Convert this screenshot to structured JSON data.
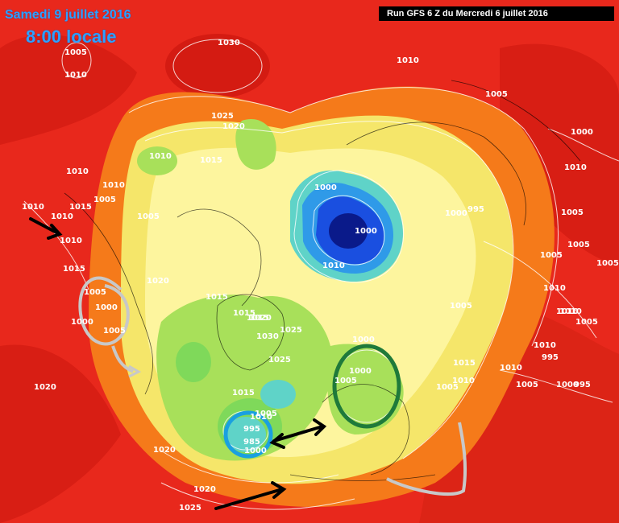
{
  "header": {
    "date": "Samedi 9 juillet 2016",
    "time": "8:00 locale",
    "run_info": "Run GFS 6 Z du Mercredi 6 juillet 2016"
  },
  "colors": {
    "background": "#e8281c",
    "orange": "#f57a1a",
    "yellow": "#f5e66a",
    "light_yellow": "#fdf59e",
    "green": "#a8e05a",
    "light_green": "#7fd95a",
    "cyan": "#5fd3c8",
    "blue": "#1a4fe0",
    "dark_blue": "#0a1a8a",
    "isobar": "#ffffff",
    "grey_annotation": "#c8c8c8",
    "green_annotation": "#1f7a3a",
    "blue_annotation": "#1aa0e0",
    "arrow": "#000000"
  },
  "isobar_labels": [
    "1005",
    "1010",
    "1030",
    "1010",
    "1025",
    "1020",
    "1005",
    "1010",
    "1015",
    "1010",
    "1000",
    "1010",
    "1010",
    "1005",
    "1015",
    "1000",
    "995",
    "1000",
    "1010",
    "1005",
    "1005",
    "1005",
    "1010",
    "1000",
    "1005",
    "1015",
    "1020",
    "1010",
    "1015",
    "1005",
    "1000",
    "1010",
    "1015",
    "1015",
    "1020",
    "1030",
    "1025",
    "1025",
    "1000",
    "1010",
    "1005",
    "1005",
    "1010",
    "1015",
    "1010",
    "1005",
    "1010",
    "995",
    "1020",
    "1015",
    "1005",
    "1000",
    "1010",
    "1005",
    "985",
    "1005",
    "1000",
    "995",
    "1020",
    "1020",
    "1025",
    "995",
    "1000",
    "1010",
    "1010",
    "1005",
    "1000",
    "1005"
  ],
  "annotations": {
    "low_pressure_value": "1000",
    "circled_low_value": "985"
  }
}
